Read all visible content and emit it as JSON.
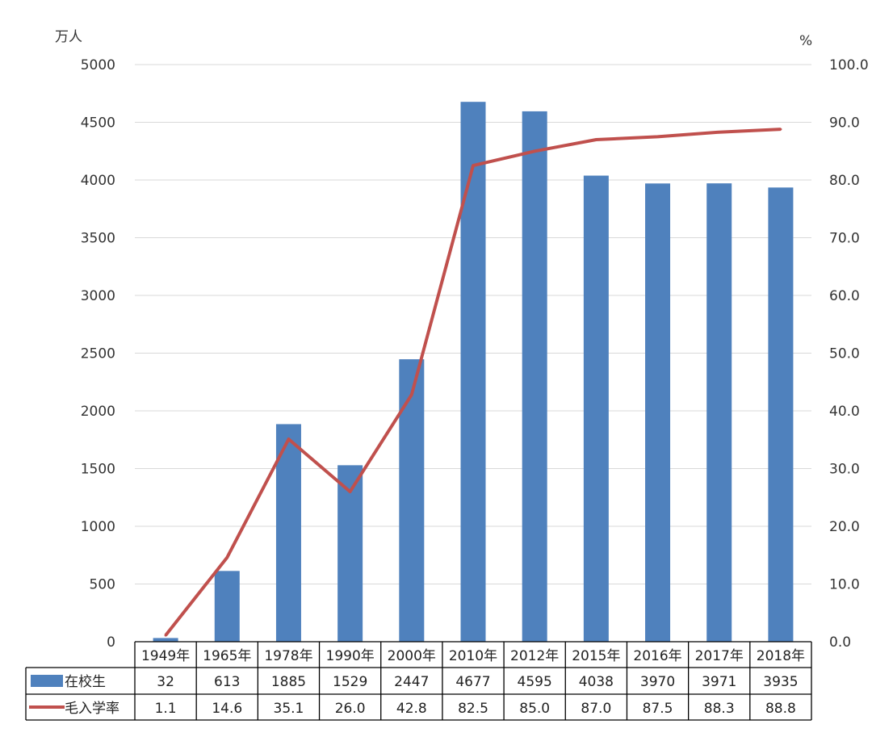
{
  "chart_data": {
    "type": "bar",
    "y_left_unit": "万人",
    "y_right_unit": "%",
    "ylim_left": [
      0,
      5000
    ],
    "ylim_right": [
      0,
      100
    ],
    "y_left_ticks": [
      "0",
      "500",
      "1000",
      "1500",
      "2000",
      "2500",
      "3000",
      "3500",
      "4000",
      "4500",
      "5000"
    ],
    "y_right_ticks": [
      "0.0",
      "10.0",
      "20.0",
      "30.0",
      "40.0",
      "50.0",
      "60.0",
      "70.0",
      "80.0",
      "90.0",
      "100.0"
    ],
    "grid": true,
    "categories": [
      "1949年",
      "1965年",
      "1978年",
      "1990年",
      "2000年",
      "2010年",
      "2012年",
      "2015年",
      "2016年",
      "2017年",
      "2018年"
    ],
    "series": [
      {
        "name": "在校生",
        "type": "bar",
        "axis": "left",
        "color": "#4F81BD",
        "values": [
          32,
          613,
          1885,
          1529,
          2447,
          4677,
          4595,
          4038,
          3970,
          3971,
          3935
        ],
        "labels": [
          "32",
          "613",
          "1885",
          "1529",
          "2447",
          "4677",
          "4595",
          "4038",
          "3970",
          "3971",
          "3935"
        ]
      },
      {
        "name": "毛入学率",
        "type": "line",
        "axis": "right",
        "color": "#C0504D",
        "values": [
          1.1,
          14.6,
          35.1,
          26.0,
          42.8,
          82.5,
          85.0,
          87.0,
          87.5,
          88.3,
          88.8
        ],
        "labels": [
          "1.1",
          "14.6",
          "35.1",
          "26.0",
          "42.8",
          "82.5",
          "85.0",
          "87.0",
          "87.5",
          "88.3",
          "88.8"
        ]
      }
    ]
  }
}
